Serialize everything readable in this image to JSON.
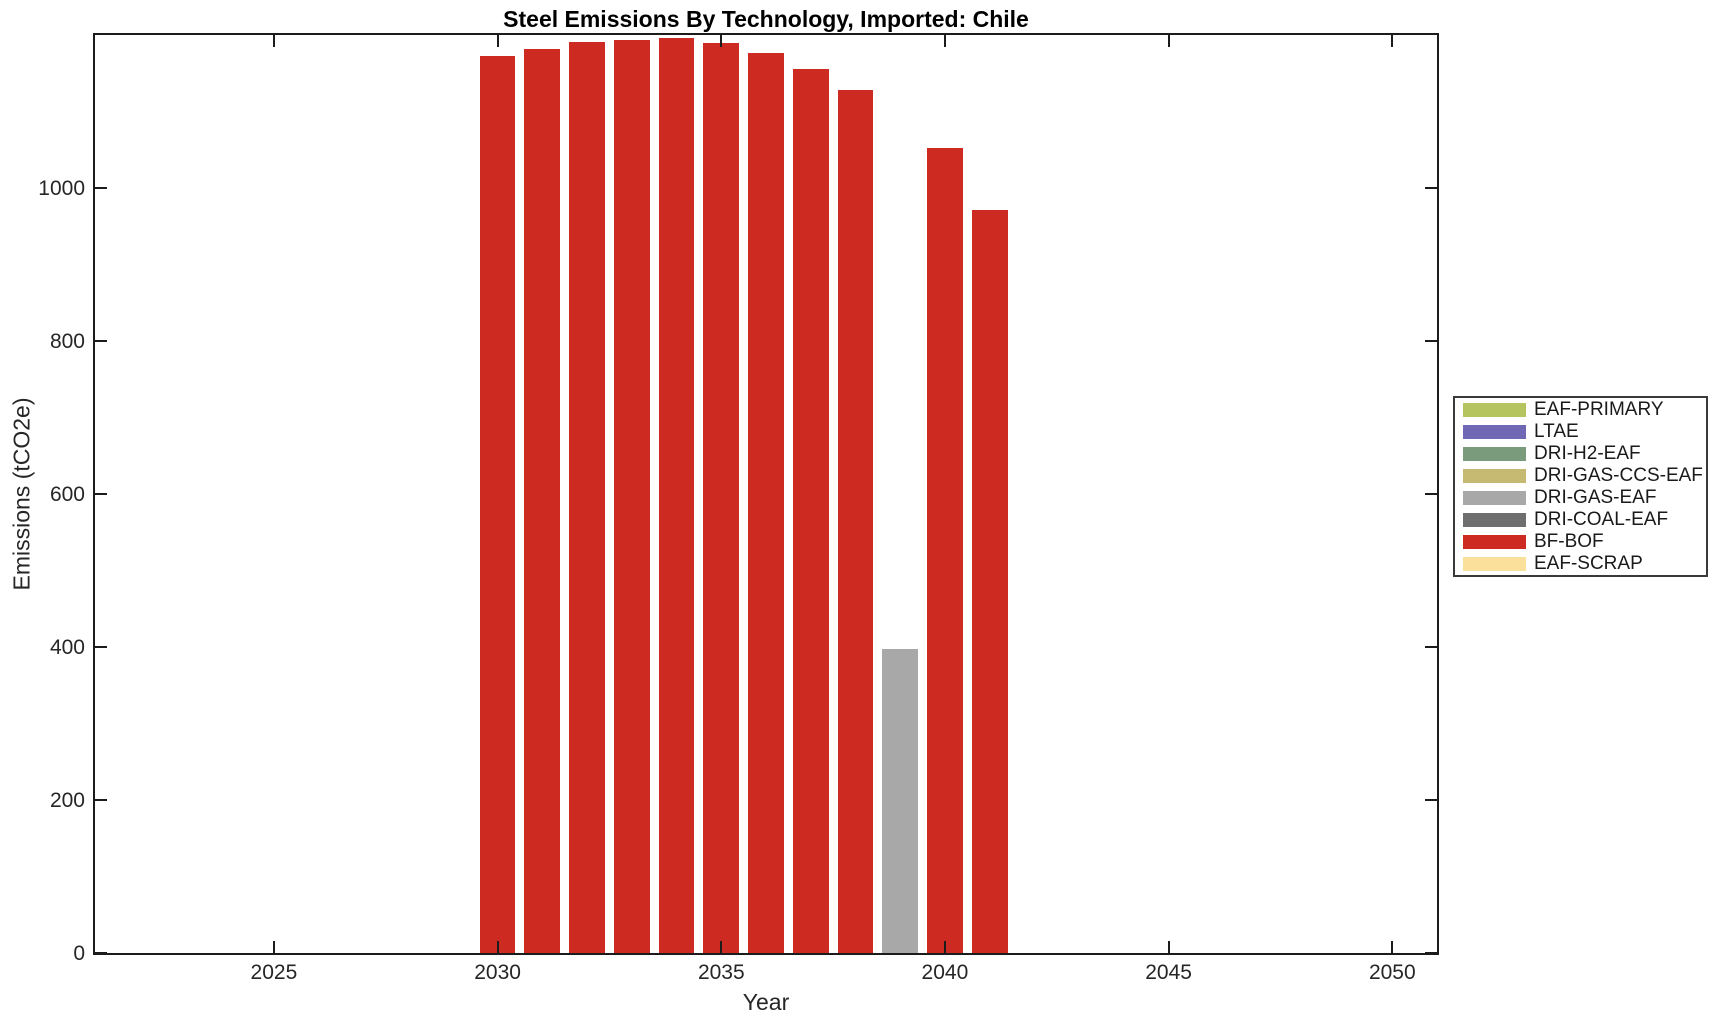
{
  "chart_data": {
    "type": "bar",
    "title": "Steel Emissions By Technology, Imported: Chile",
    "xlabel": "Year",
    "ylabel": "Emissions (tCO2e)",
    "xlim": [
      2021,
      2051
    ],
    "ylim": [
      0,
      1200
    ],
    "xticks": [
      2025,
      2030,
      2035,
      2040,
      2045,
      2050
    ],
    "yticks": [
      0,
      200,
      400,
      600,
      800,
      1000
    ],
    "bar_width_years": 0.8,
    "grid": false,
    "legend_position": "right-outside",
    "legend": [
      {
        "label": "EAF-PRIMARY",
        "color": "#b5c45e"
      },
      {
        "label": "LTAE",
        "color": "#7067b5"
      },
      {
        "label": "DRI-H2-EAF",
        "color": "#7a9b7c"
      },
      {
        "label": "DRI-GAS-CCS-EAF",
        "color": "#c6ba73"
      },
      {
        "label": "DRI-GAS-EAF",
        "color": "#a8a8a8"
      },
      {
        "label": "DRI-COAL-EAF",
        "color": "#6e6e6e"
      },
      {
        "label": "BF-BOF",
        "color": "#cd2a22"
      },
      {
        "label": "EAF-SCRAP",
        "color": "#fae09a"
      }
    ],
    "bars": [
      {
        "year": 2030,
        "value": 1173,
        "tech": "BF-BOF"
      },
      {
        "year": 2031,
        "value": 1182,
        "tech": "BF-BOF"
      },
      {
        "year": 2032,
        "value": 1191,
        "tech": "BF-BOF"
      },
      {
        "year": 2033,
        "value": 1194,
        "tech": "BF-BOF"
      },
      {
        "year": 2034,
        "value": 1196,
        "tech": "BF-BOF"
      },
      {
        "year": 2035,
        "value": 1189,
        "tech": "BF-BOF"
      },
      {
        "year": 2036,
        "value": 1176,
        "tech": "BF-BOF"
      },
      {
        "year": 2037,
        "value": 1156,
        "tech": "BF-BOF"
      },
      {
        "year": 2038,
        "value": 1128,
        "tech": "BF-BOF"
      },
      {
        "year": 2039,
        "value": 398,
        "tech": "DRI-GAS-EAF"
      },
      {
        "year": 2040,
        "value": 1053,
        "tech": "BF-BOF"
      },
      {
        "year": 2041,
        "value": 971,
        "tech": "BF-BOF"
      }
    ]
  }
}
